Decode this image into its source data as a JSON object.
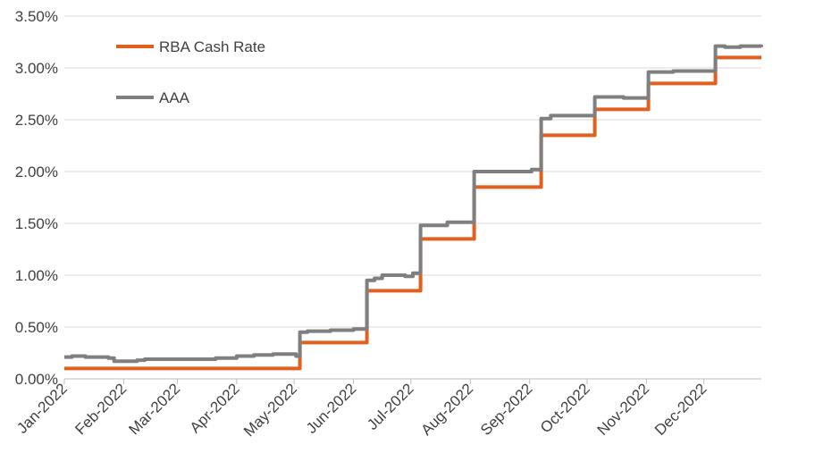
{
  "chart_data": {
    "type": "line",
    "title": "",
    "xlabel": "",
    "ylabel": "",
    "x_tick_labels": [
      "Jan-2022",
      "Feb-2022",
      "Mar-2022",
      "Apr-2022",
      "May-2022",
      "Jun-2022",
      "Jul-2022",
      "Aug-2022",
      "Sep-2022",
      "Oct-2022",
      "Nov-2022",
      "Dec-2022"
    ],
    "y_tick_labels": [
      "0.00%",
      "0.50%",
      "1.00%",
      "1.50%",
      "2.00%",
      "2.50%",
      "3.00%",
      "3.50%"
    ],
    "ylim": [
      0,
      3.5
    ],
    "xlim": [
      "2022-01-01",
      "2022-12-31"
    ],
    "grid": "horizontal",
    "legend_position": "top-left",
    "series": [
      {
        "name": "RBA Cash Rate",
        "color": "#E2601F",
        "step": true,
        "points": [
          [
            "2022-01-01",
            0.1
          ],
          [
            "2022-05-04",
            0.35
          ],
          [
            "2022-06-08",
            0.85
          ],
          [
            "2022-07-06",
            1.35
          ],
          [
            "2022-08-03",
            1.85
          ],
          [
            "2022-09-07",
            2.35
          ],
          [
            "2022-10-05",
            2.6
          ],
          [
            "2022-11-02",
            2.85
          ],
          [
            "2022-12-07",
            3.1
          ],
          [
            "2022-12-31",
            3.1
          ]
        ]
      },
      {
        "name": "AAA",
        "color": "#7F7F7F",
        "step": true,
        "points": [
          [
            "2022-01-01",
            0.21
          ],
          [
            "2022-01-05",
            0.22
          ],
          [
            "2022-01-12",
            0.21
          ],
          [
            "2022-01-24",
            0.2
          ],
          [
            "2022-01-27",
            0.17
          ],
          [
            "2022-02-01",
            0.17
          ],
          [
            "2022-02-08",
            0.18
          ],
          [
            "2022-02-12",
            0.19
          ],
          [
            "2022-03-10",
            0.19
          ],
          [
            "2022-03-21",
            0.2
          ],
          [
            "2022-04-01",
            0.22
          ],
          [
            "2022-04-10",
            0.23
          ],
          [
            "2022-04-20",
            0.24
          ],
          [
            "2022-05-02",
            0.22
          ],
          [
            "2022-05-04",
            0.45
          ],
          [
            "2022-05-08",
            0.46
          ],
          [
            "2022-05-20",
            0.47
          ],
          [
            "2022-06-01",
            0.48
          ],
          [
            "2022-06-08",
            0.95
          ],
          [
            "2022-06-12",
            0.97
          ],
          [
            "2022-06-16",
            1.0
          ],
          [
            "2022-06-22",
            1.0
          ],
          [
            "2022-06-28",
            0.99
          ],
          [
            "2022-07-02",
            1.02
          ],
          [
            "2022-07-06",
            1.48
          ],
          [
            "2022-07-20",
            1.51
          ],
          [
            "2022-08-03",
            2.0
          ],
          [
            "2022-08-31",
            2.0
          ],
          [
            "2022-09-02",
            2.02
          ],
          [
            "2022-09-07",
            2.51
          ],
          [
            "2022-09-12",
            2.54
          ],
          [
            "2022-10-05",
            2.72
          ],
          [
            "2022-10-20",
            2.71
          ],
          [
            "2022-11-02",
            2.96
          ],
          [
            "2022-11-15",
            2.97
          ],
          [
            "2022-12-07",
            3.21
          ],
          [
            "2022-12-12",
            3.2
          ],
          [
            "2022-12-20",
            3.21
          ],
          [
            "2022-12-31",
            3.2
          ]
        ]
      }
    ]
  }
}
